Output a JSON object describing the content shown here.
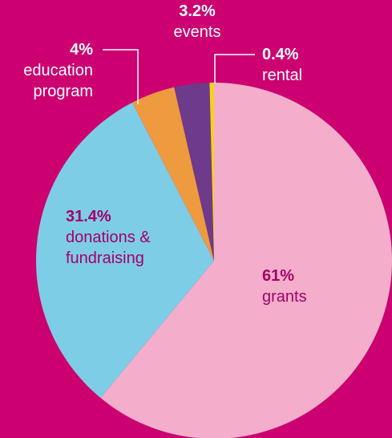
{
  "chart_data": {
    "type": "pie",
    "categories": [
      "grants",
      "donations & fundraising",
      "education program",
      "events",
      "rental"
    ],
    "values": [
      61,
      31.4,
      4,
      3.2,
      0.4
    ],
    "value_labels": [
      "61%",
      "31.4%",
      "4%",
      "3.2%",
      "0.4%"
    ],
    "colors": [
      "#f4aecb",
      "#7ecde6",
      "#ee9a3f",
      "#6d3a8c",
      "#f5d21c"
    ]
  }
}
